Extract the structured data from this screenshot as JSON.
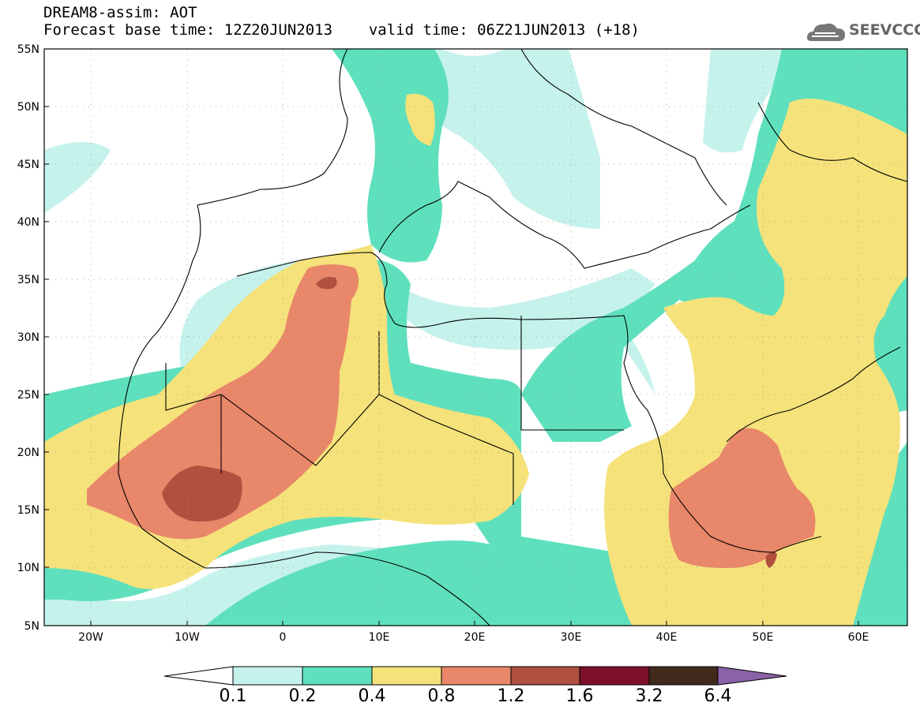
{
  "header": {
    "title": "DREAM8-assim: AOT",
    "base_time": "Forecast base time: 12Z20JUN2013",
    "valid_time": "valid time: 06Z21JUN2013 (+18)",
    "logo_text": "SEEVCCC"
  },
  "map": {
    "lat_labels": [
      "55N",
      "50N",
      "45N",
      "40N",
      "35N",
      "30N",
      "25N",
      "20N",
      "15N",
      "10N",
      "5N"
    ],
    "lon_labels": [
      "20W",
      "10W",
      "0",
      "10E",
      "20E",
      "30E",
      "40E",
      "50E",
      "60E"
    ],
    "lat_range": [
      5,
      55
    ],
    "lon_range": [
      -25,
      65
    ]
  },
  "colorbar": {
    "labels": [
      "0.1",
      "0.2",
      "0.4",
      "0.8",
      "1.2",
      "1.6",
      "3.2",
      "6.4"
    ],
    "colors": [
      "#ffffff",
      "#c6f2ec",
      "#5fe0bd",
      "#f5e27a",
      "#e8876a",
      "#b1503f",
      "#7c0f2a",
      "#3f2a1c",
      "#8a62a8"
    ]
  }
}
